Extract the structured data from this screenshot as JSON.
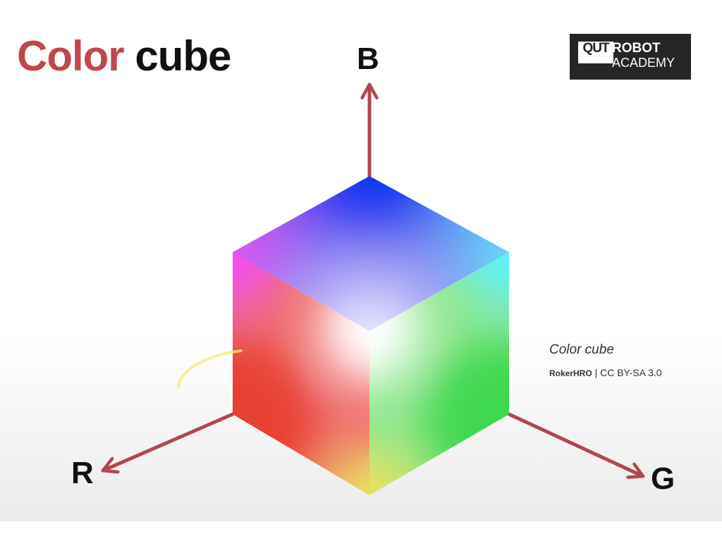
{
  "slide": {
    "title_part1": "Color",
    "title_part2": "cube"
  },
  "logo": {
    "mark": "QUT",
    "line1": "ROBOT",
    "line2": "ACADEMY"
  },
  "axes": {
    "b_label": "B",
    "r_label": "R",
    "g_label": "G"
  },
  "credit": {
    "caption": "Color cube",
    "author": "RokerHRO",
    "separator": " | ",
    "license": "CC BY-SA 3.0"
  },
  "colors": {
    "title_accent": "#c0474a",
    "title_text": "#111111",
    "arrow": "#b0474f",
    "logo_bg": "#262626",
    "top_face_apex": "#1030f0",
    "corner_magenta": "#f050f0",
    "corner_cyan": "#60f0f8",
    "corner_red": "#e84030",
    "corner_green": "#40d850",
    "corner_yellow": "#e8e060",
    "corner_white": "#ffffff"
  }
}
